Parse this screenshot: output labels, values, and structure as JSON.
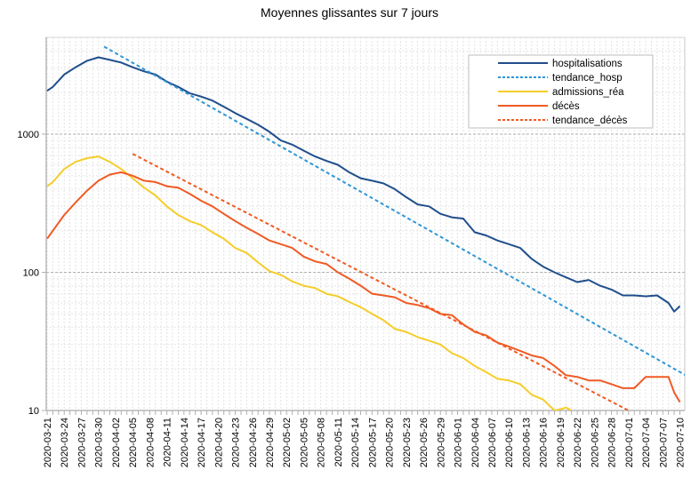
{
  "chart_data": {
    "type": "line",
    "title": "Moyennes glissantes sur 7 jours",
    "xlabel": "",
    "ylabel": "",
    "yscale": "log",
    "ylim": [
      10,
      5000
    ],
    "y_ticks": [
      "10",
      "100",
      "1000"
    ],
    "grid": true,
    "legend_position": "top-right",
    "x_tick_labels": [
      "2020-03-21",
      "2020-03-24",
      "2020-03-27",
      "2020-03-30",
      "2020-04-02",
      "2020-04-05",
      "2020-04-08",
      "2020-04-11",
      "2020-04-14",
      "2020-04-17",
      "2020-04-20",
      "2020-04-23",
      "2020-04-26",
      "2020-04-29",
      "2020-05-02",
      "2020-05-05",
      "2020-05-08",
      "2020-05-11",
      "2020-05-14",
      "2020-05-17",
      "2020-05-20",
      "2020-05-23",
      "2020-05-26",
      "2020-05-29",
      "2020-06-01",
      "2020-06-04",
      "2020-06-07",
      "2020-06-10",
      "2020-06-13",
      "2020-06-16",
      "2020-06-19",
      "2020-06-22",
      "2020-06-25",
      "2020-06-28",
      "2020-07-01",
      "2020-07-04",
      "2020-07-07",
      "2020-07-10"
    ],
    "x_unit": "days since 2020-03-21",
    "series": [
      {
        "name": "hospitalisations",
        "color": "#1f4e8c",
        "style": "solid",
        "x": [
          0,
          1,
          3,
          5,
          7,
          9,
          11,
          13,
          15,
          17,
          19,
          21,
          23,
          25,
          27,
          29,
          31,
          33,
          35,
          37,
          39,
          41,
          43,
          45,
          47,
          49,
          51,
          53,
          55,
          57,
          59,
          61,
          63,
          65,
          67,
          69,
          71,
          73,
          75,
          77,
          79,
          81,
          83,
          85,
          87,
          89,
          91,
          93,
          95,
          97,
          99,
          101,
          103,
          105,
          107,
          109,
          110,
          111
        ],
        "y": [
          2060,
          2200,
          2700,
          3050,
          3400,
          3600,
          3450,
          3300,
          3050,
          2850,
          2700,
          2400,
          2200,
          1980,
          1870,
          1750,
          1580,
          1420,
          1290,
          1170,
          1040,
          900,
          840,
          760,
          690,
          640,
          600,
          530,
          480,
          460,
          440,
          400,
          350,
          310,
          300,
          265,
          250,
          245,
          195,
          185,
          170,
          160,
          150,
          125,
          110,
          100,
          92,
          85,
          88,
          80,
          75,
          68,
          68,
          67,
          68,
          60,
          52,
          57
        ]
      },
      {
        "name": "tendance_hosp",
        "color": "#2e96d6",
        "style": "dashed",
        "x": [
          10,
          112
        ],
        "y": [
          4300,
          18
        ]
      },
      {
        "name": "admissions_réa",
        "color": "#f5cd2a",
        "style": "solid",
        "x": [
          0,
          1,
          3,
          5,
          7,
          9,
          11,
          13,
          15,
          17,
          19,
          21,
          23,
          25,
          27,
          29,
          31,
          33,
          35,
          37,
          39,
          41,
          43,
          45,
          47,
          49,
          51,
          53,
          55,
          57,
          59,
          61,
          63,
          65,
          67,
          69,
          71,
          73,
          75,
          77,
          79,
          81,
          83,
          85,
          87,
          89,
          90,
          91,
          92
        ],
        "y": [
          420,
          450,
          560,
          630,
          670,
          690,
          630,
          560,
          480,
          410,
          360,
          300,
          260,
          235,
          220,
          195,
          175,
          150,
          138,
          118,
          102,
          96,
          86,
          80,
          77,
          70,
          67,
          61,
          56,
          50,
          45,
          39,
          37,
          34,
          32,
          30,
          26,
          24,
          21,
          19,
          17,
          16.5,
          15.5,
          13,
          12,
          10,
          10.2,
          10.5,
          10
        ]
      },
      {
        "name": "décès",
        "color": "#f05a23",
        "style": "solid",
        "x": [
          0,
          1,
          3,
          5,
          7,
          9,
          11,
          13,
          15,
          17,
          19,
          21,
          23,
          25,
          27,
          29,
          31,
          33,
          35,
          37,
          39,
          41,
          43,
          45,
          47,
          49,
          51,
          53,
          55,
          57,
          59,
          61,
          63,
          65,
          67,
          69,
          71,
          73,
          75,
          77,
          79,
          81,
          83,
          85,
          87,
          89,
          91,
          93,
          95,
          97,
          99,
          101,
          103,
          105,
          107,
          109,
          110,
          111
        ],
        "y": [
          175,
          200,
          260,
          320,
          390,
          460,
          510,
          530,
          500,
          460,
          450,
          420,
          410,
          370,
          330,
          300,
          265,
          235,
          210,
          190,
          170,
          160,
          150,
          130,
          120,
          115,
          100,
          90,
          80,
          70,
          68,
          66,
          60,
          58,
          55,
          50,
          49,
          42,
          37,
          35,
          31,
          29,
          27,
          25,
          24,
          21,
          18,
          17.5,
          16.5,
          16.5,
          15.5,
          14.5,
          14.5,
          17.5,
          17.5,
          17.5,
          13.5,
          11.5
        ]
      },
      {
        "name": "tendance_décès",
        "color": "#f05a23",
        "style": "dashed",
        "x": [
          15,
          102
        ],
        "y": [
          720,
          10
        ]
      }
    ]
  }
}
